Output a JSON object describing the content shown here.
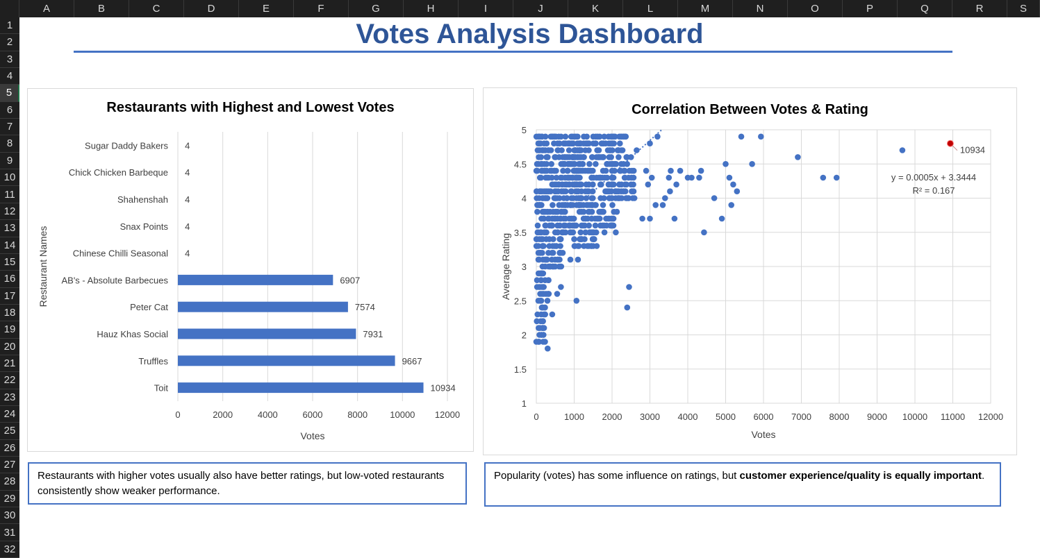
{
  "sheet": {
    "columns": [
      "A",
      "B",
      "C",
      "D",
      "E",
      "F",
      "G",
      "H",
      "I",
      "J",
      "K",
      "L",
      "M",
      "N",
      "O",
      "P",
      "Q",
      "R",
      "S"
    ],
    "rows": [
      "1",
      "2",
      "3",
      "4",
      "5",
      "6",
      "7",
      "8",
      "9",
      "10",
      "11",
      "12",
      "13",
      "14",
      "15",
      "16",
      "17",
      "18",
      "19",
      "20",
      "21",
      "22",
      "23",
      "24",
      "25",
      "26",
      "27",
      "28",
      "29",
      "30",
      "31",
      "32"
    ],
    "selected_row": "5",
    "accent_color": "#4472c4"
  },
  "dashboard": {
    "title": "Votes Analysis Dashboard"
  },
  "bar_chart_title": "Restaurants with Highest and Lowest Votes",
  "scatter_chart_title": "Correlation Between Votes & Rating",
  "trendline": {
    "equation": "y = 0.0005x + 3.3444",
    "r_squared": "R² = 0.167",
    "slope": 0.0005,
    "intercept": 3.3444
  },
  "highlight": {
    "label": "10934",
    "x": 10934,
    "y": 4.8,
    "color": "#c00000"
  },
  "notes": {
    "left": "Restaurants with higher votes usually also have better ratings, but low-voted restaurants consistently show weaker performance.",
    "right_part1": "Popularity (votes) has some influence on ratings, but ",
    "right_bold": "customer experience/quality is equally important",
    "right_part2": "."
  },
  "chart_data": [
    {
      "type": "bar",
      "orientation": "horizontal",
      "title": "Restaurants with Highest and Lowest Votes",
      "xlabel": "Votes",
      "ylabel": "Restaurant Names",
      "categories": [
        "Sugar Daddy Bakers",
        "Chick Chicken Barbeque",
        "Shahenshah",
        "Snax Points",
        "Chinese Chilli Seasonal",
        "AB's - Absolute Barbecues",
        "Peter Cat",
        "Hauz Khas Social",
        "Truffles",
        "Toit"
      ],
      "values": [
        4,
        4,
        4,
        4,
        4,
        6907,
        7574,
        7931,
        9667,
        10934
      ],
      "xlim": [
        0,
        12000
      ],
      "xticks": [
        "0",
        "2000",
        "4000",
        "6000",
        "8000",
        "10000",
        "12000"
      ],
      "grid": true,
      "color": "#4472c4"
    },
    {
      "type": "scatter",
      "title": "Correlation Between Votes & Rating",
      "xlabel": "Votes",
      "ylabel": "Average Rating",
      "xlim": [
        0,
        12000
      ],
      "ylim": [
        1,
        5
      ],
      "xticks": [
        "0",
        "1000",
        "2000",
        "3000",
        "4000",
        "5000",
        "6000",
        "7000",
        "8000",
        "9000",
        "10000",
        "11000",
        "12000"
      ],
      "yticks": [
        "1",
        "1.5",
        "2",
        "2.5",
        "3",
        "3.5",
        "4",
        "4.5",
        "5"
      ],
      "grid": true,
      "color": "#4472c4",
      "points": [
        [
          10934,
          4.8
        ],
        [
          9667,
          4.7
        ],
        [
          7931,
          4.3
        ],
        [
          7574,
          4.3
        ],
        [
          6907,
          4.6
        ],
        [
          5932,
          4.9
        ],
        [
          5413,
          4.9
        ],
        [
          5700,
          4.5
        ],
        [
          5000,
          4.5
        ],
        [
          5100,
          4.3
        ],
        [
          5200,
          4.2
        ],
        [
          5300,
          4.1
        ],
        [
          5150,
          3.9
        ],
        [
          4900,
          3.7
        ],
        [
          4700,
          4.0
        ],
        [
          4430,
          3.5
        ],
        [
          4350,
          4.4
        ],
        [
          4300,
          4.3
        ],
        [
          4000,
          4.3
        ],
        [
          4100,
          4.3
        ],
        [
          3800,
          4.4
        ],
        [
          3700,
          4.2
        ],
        [
          3550,
          4.4
        ],
        [
          3500,
          4.3
        ],
        [
          3530,
          4.1
        ],
        [
          3400,
          4.0
        ],
        [
          3340,
          3.9
        ],
        [
          3150,
          3.9
        ],
        [
          3650,
          3.7
        ],
        [
          3000,
          3.7
        ],
        [
          2800,
          3.7
        ],
        [
          3050,
          4.3
        ],
        [
          2950,
          4.2
        ],
        [
          2900,
          4.4
        ],
        [
          2450,
          2.7
        ],
        [
          2400,
          2.4
        ],
        [
          1060,
          2.5
        ],
        [
          300,
          1.8
        ],
        [
          420,
          2.3
        ],
        [
          1100,
          3.1
        ],
        [
          900,
          3.1
        ],
        [
          650,
          2.7
        ],
        [
          500,
          3.0
        ],
        [
          550,
          2.6
        ],
        [
          3200,
          4.9
        ],
        [
          3000,
          4.8
        ],
        [
          2650,
          4.7
        ],
        [
          2500,
          4.6
        ],
        [
          2100,
          3.5
        ],
        [
          1800,
          3.5
        ],
        [
          1500,
          3.3
        ],
        [
          1350,
          3.3
        ],
        [
          1200,
          3.4
        ],
        [
          1000,
          3.4
        ],
        [
          700,
          3.5
        ]
      ],
      "dense_regions": [
        {
          "rating_min": 1.9,
          "rating_max": 4.9,
          "votes_min": 0,
          "votes_max": 1000
        },
        {
          "rating_min": 3.3,
          "rating_max": 4.9,
          "votes_min": 1000,
          "votes_max": 2400
        }
      ]
    }
  ]
}
